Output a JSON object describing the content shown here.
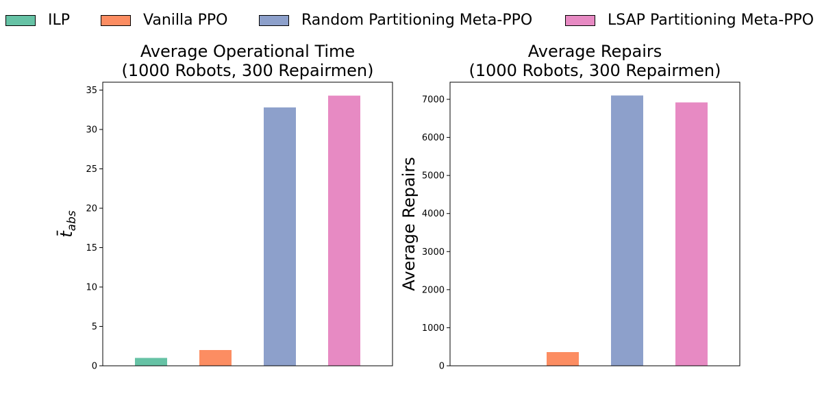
{
  "chart_data": [
    {
      "type": "bar",
      "title": [
        "Average Operational Time",
        "(1000 Robots, 300 Repairmen)"
      ],
      "ylabel_base": "t",
      "ylabel_sub": "abs",
      "ylim": [
        0,
        36
      ],
      "yticks": [
        0,
        5,
        10,
        15,
        20,
        25,
        30,
        35
      ],
      "grid": false,
      "series": [
        {
          "name": "ILP",
          "value": 1.0
        },
        {
          "name": "Vanilla PPO",
          "value": 2.0
        },
        {
          "name": "Random Partitioning Meta-PPO",
          "value": 32.8
        },
        {
          "name": "LSAP Partitioning Meta-PPO",
          "value": 34.3
        }
      ]
    },
    {
      "type": "bar",
      "title": [
        "Average Repairs",
        "(1000 Robots, 300 Repairmen)"
      ],
      "ylabel": "Average Repairs",
      "ylim": [
        0,
        7450
      ],
      "yticks": [
        0,
        1000,
        2000,
        3000,
        4000,
        5000,
        6000,
        7000
      ],
      "grid": false,
      "series": [
        {
          "name": "ILP",
          "value": 0
        },
        {
          "name": "Vanilla PPO",
          "value": 360
        },
        {
          "name": "Random Partitioning Meta-PPO",
          "value": 7100
        },
        {
          "name": "LSAP Partitioning Meta-PPO",
          "value": 6920
        }
      ]
    }
  ],
  "legend": {
    "placement": "top",
    "items": [
      {
        "label": "ILP",
        "color": "#66c2a5"
      },
      {
        "label": "Vanilla PPO",
        "color": "#fc8d62"
      },
      {
        "label": "Random Partitioning Meta-PPO",
        "color": "#8da0cb"
      },
      {
        "label": "LSAP Partitioning Meta-PPO",
        "color": "#e78ac3"
      }
    ]
  }
}
